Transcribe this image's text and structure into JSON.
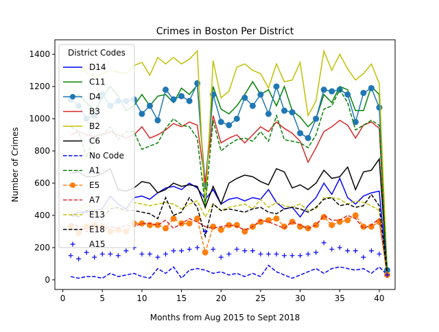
{
  "chart_data": {
    "type": "line",
    "title": "Crimes in Boston Per District",
    "xlabel": "Months from Aug 2015 to Sept 2018",
    "ylabel": "Number of Crimes",
    "xlim": [
      -1,
      42
    ],
    "ylim": [
      -60,
      1490
    ],
    "xticks": [
      0,
      5,
      10,
      15,
      20,
      25,
      30,
      35,
      40
    ],
    "yticks": [
      0,
      200,
      400,
      600,
      800,
      1000,
      1200,
      1400
    ],
    "legend_title": "District Codes",
    "legend_position": "upper-left",
    "grid": false,
    "series": [
      {
        "name": "D14",
        "color": "#0000ff",
        "style": "solid",
        "marker": "none",
        "values": [
          400,
          420,
          420,
          430,
          440,
          520,
          470,
          440,
          510,
          520,
          500,
          540,
          570,
          580,
          560,
          600,
          570,
          500,
          560,
          470,
          500,
          510,
          490,
          510,
          500,
          560,
          480,
          440,
          450,
          390,
          460,
          510,
          600,
          530,
          630,
          510,
          470,
          520,
          540,
          550,
          30
        ]
      },
      {
        "name": "C11",
        "color": "#008000",
        "style": "solid",
        "marker": "none",
        "values": [
          1120,
          1150,
          1100,
          1050,
          1130,
          1200,
          1140,
          1050,
          1080,
          1150,
          1080,
          1140,
          1150,
          1100,
          1190,
          1150,
          1210,
          560,
          1200,
          1060,
          1030,
          1080,
          1150,
          1230,
          1150,
          1180,
          1080,
          1200,
          1050,
          1010,
          950,
          1000,
          1150,
          1100,
          1200,
          1180,
          1050,
          1050,
          1200,
          1150,
          40
        ]
      },
      {
        "name": "D4",
        "color": "#1f77b4",
        "style": "solid",
        "marker": "circle",
        "values": [
          1120,
          1080,
          1000,
          1020,
          1150,
          1080,
          1110,
          1110,
          1120,
          1030,
          1080,
          990,
          1180,
          1120,
          1140,
          1110,
          1220,
          590,
          1150,
          980,
          960,
          1000,
          1130,
          1080,
          1150,
          1030,
          1200,
          1050,
          1040,
          910,
          880,
          1000,
          1180,
          1170,
          1180,
          1150,
          980,
          1160,
          1190,
          1070,
          60
        ]
      },
      {
        "name": "B3",
        "color": "#d62728",
        "style": "solid",
        "marker": "none",
        "values": [
          900,
          920,
          900,
          890,
          900,
          920,
          900,
          880,
          900,
          950,
          880,
          900,
          930,
          970,
          950,
          980,
          960,
          600,
          1020,
          850,
          880,
          900,
          850,
          900,
          950,
          920,
          980,
          940,
          910,
          860,
          730,
          820,
          920,
          950,
          990,
          960,
          880,
          960,
          980,
          940,
          30
        ]
      },
      {
        "name": "B2",
        "color": "#bfbf00",
        "style": "solid",
        "marker": "none",
        "values": [
          1310,
          1330,
          1290,
          1260,
          1280,
          1300,
          1290,
          1280,
          1330,
          1350,
          1270,
          1380,
          1340,
          1380,
          1340,
          1370,
          1420,
          440,
          1360,
          1130,
          1170,
          1320,
          1340,
          1300,
          1280,
          1190,
          1340,
          1230,
          1240,
          1350,
          1020,
          1110,
          1420,
          1300,
          1400,
          1310,
          1240,
          1280,
          1340,
          1220,
          40
        ]
      },
      {
        "name": "C6",
        "color": "#000000",
        "style": "solid",
        "marker": "none",
        "values": [
          660,
          670,
          640,
          640,
          660,
          690,
          560,
          550,
          570,
          610,
          600,
          540,
          560,
          600,
          580,
          590,
          580,
          450,
          580,
          470,
          600,
          630,
          650,
          640,
          610,
          590,
          690,
          670,
          570,
          590,
          560,
          600,
          680,
          630,
          640,
          700,
          560,
          670,
          680,
          750,
          50
        ]
      },
      {
        "name": "No Code",
        "color": "#0000ff",
        "style": "dashed",
        "marker": "none",
        "values": [
          20,
          10,
          20,
          20,
          10,
          40,
          20,
          30,
          40,
          20,
          10,
          70,
          40,
          80,
          10,
          60,
          70,
          60,
          40,
          50,
          30,
          40,
          20,
          40,
          20,
          90,
          50,
          30,
          10,
          30,
          50,
          70,
          40,
          70,
          80,
          70,
          60,
          70,
          40,
          80,
          30
        ]
      },
      {
        "name": "A1",
        "color": "#008000",
        "style": "dashed",
        "marker": "none",
        "values": [
          950,
          920,
          760,
          890,
          900,
          950,
          870,
          920,
          920,
          810,
          830,
          850,
          940,
          1000,
          960,
          950,
          880,
          460,
          990,
          800,
          840,
          870,
          880,
          860,
          920,
          860,
          1020,
          870,
          860,
          850,
          820,
          900,
          1060,
          1080,
          1180,
          1100,
          930,
          960,
          990,
          960,
          20
        ]
      },
      {
        "name": "E5",
        "color": "#ff7f0e",
        "style": "dashed",
        "marker": "circle",
        "values": [
          330,
          290,
          330,
          340,
          330,
          300,
          310,
          300,
          350,
          350,
          340,
          340,
          320,
          380,
          350,
          350,
          380,
          170,
          330,
          310,
          340,
          340,
          300,
          330,
          360,
          370,
          380,
          330,
          360,
          330,
          320,
          340,
          390,
          340,
          360,
          370,
          400,
          330,
          330,
          360,
          30
        ]
      },
      {
        "name": "A7",
        "color": "#d62728",
        "style": "dashed",
        "marker": "none",
        "values": [
          350,
          330,
          300,
          320,
          320,
          330,
          320,
          340,
          330,
          350,
          350,
          340,
          370,
          320,
          350,
          380,
          360,
          330,
          320,
          330,
          340,
          330,
          310,
          330,
          370,
          360,
          340,
          320,
          360,
          340,
          320,
          340,
          400,
          370,
          370,
          400,
          380,
          320,
          340,
          380,
          30
        ]
      },
      {
        "name": "E13",
        "color": "#bfbf00",
        "style": "dashed",
        "marker": "none",
        "values": [
          420,
          430,
          480,
          420,
          430,
          460,
          440,
          430,
          480,
          470,
          460,
          470,
          480,
          470,
          440,
          470,
          490,
          390,
          470,
          430,
          450,
          460,
          470,
          440,
          500,
          450,
          480,
          460,
          450,
          470,
          430,
          440,
          510,
          510,
          500,
          470,
          490,
          480,
          460,
          430,
          30
        ]
      },
      {
        "name": "E18",
        "color": "#000000",
        "style": "dashed",
        "marker": "none",
        "values": [
          400,
          390,
          430,
          420,
          380,
          440,
          450,
          430,
          430,
          420,
          410,
          380,
          510,
          400,
          420,
          510,
          450,
          270,
          470,
          430,
          440,
          430,
          420,
          440,
          450,
          420,
          410,
          440,
          450,
          440,
          420,
          450,
          500,
          510,
          460,
          470,
          450,
          460,
          530,
          460,
          30
        ]
      },
      {
        "name": "A15",
        "color": "#0000ff",
        "style": "none",
        "marker": "plus",
        "values": [
          150,
          130,
          170,
          140,
          160,
          160,
          150,
          180,
          200,
          160,
          160,
          140,
          160,
          180,
          180,
          190,
          200,
          300,
          190,
          140,
          160,
          190,
          180,
          180,
          160,
          160,
          160,
          150,
          150,
          150,
          160,
          170,
          230,
          190,
          200,
          180,
          180,
          140,
          180,
          160,
          30
        ]
      }
    ]
  }
}
